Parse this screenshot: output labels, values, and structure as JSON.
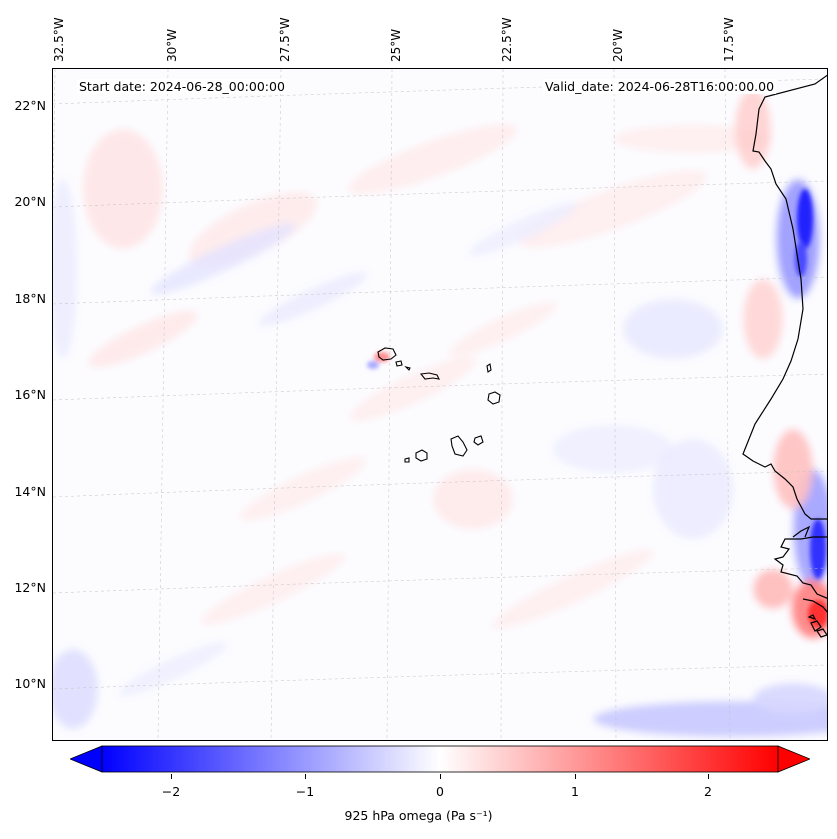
{
  "header": {
    "start_date": "Start date: 2024-06-28_00:00:00",
    "valid_date": "Valid_date: 2024-06-28T16:00:00.00"
  },
  "map": {
    "longitude_labels": [
      "32.5°W",
      "30°W",
      "27.5°W",
      "25°W",
      "22.5°W",
      "20°W",
      "17.5°W"
    ],
    "latitude_labels": [
      "22°N",
      "20°N",
      "18°N",
      "16°N",
      "14°N",
      "12°N",
      "10°N"
    ],
    "features": [
      "Cabo Verde islands",
      "West African coastline"
    ],
    "gridlines": "dashed grey"
  },
  "colorbar": {
    "label": "925 hPa omega (Pa s⁻¹)",
    "ticks": [
      "−2",
      "−1",
      "0",
      "1",
      "2"
    ],
    "tick_values": [
      -2,
      -1,
      0,
      1,
      2
    ],
    "range": [
      -2.5,
      2.5
    ],
    "extend": "both",
    "colormap": "bwr",
    "colors": {
      "negative": "#0000ff",
      "zero": "#ffffff",
      "positive": "#ff0000"
    }
  }
}
